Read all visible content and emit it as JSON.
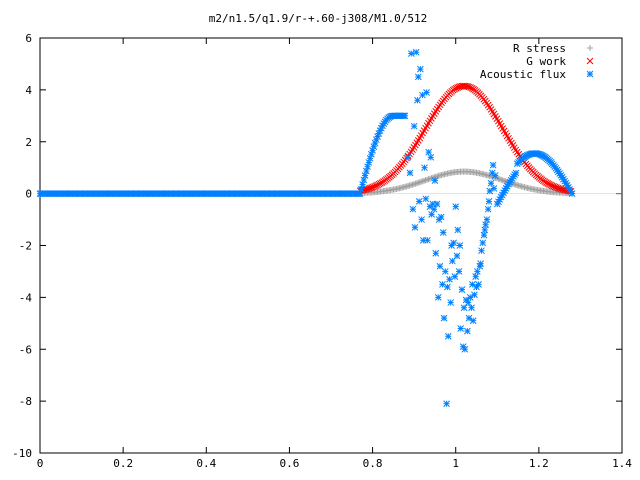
{
  "chart_data": {
    "type": "scatter",
    "title": "m2/n1.5/q1.9/r-+.60-j308/M1.0/512",
    "xlabel": "",
    "ylabel": "",
    "xlim": [
      0,
      1.4
    ],
    "ylim": [
      -10,
      6
    ],
    "x_ticks": [
      "0",
      "0.2",
      "0.4",
      "0.6",
      "0.8",
      "1",
      "1.2",
      "1.4"
    ],
    "y_ticks": [
      "6",
      "4",
      "2",
      "0",
      "-2",
      "-4",
      "-6",
      "-8",
      "-10"
    ],
    "grid": false,
    "legend_position": "top-right",
    "series": [
      {
        "name": "R stress",
        "marker": "plus",
        "color": "#a0a0a0",
        "curve": "bump",
        "x_range": [
          0.77,
          1.28
        ],
        "amplitude": 0.85,
        "center": 1.02,
        "zero_from": 0.0,
        "step": 0.0035
      },
      {
        "name": "G work",
        "marker": "cross",
        "color": "#ff0000",
        "curve": "bump",
        "x_range": [
          0.77,
          1.28
        ],
        "amplitude": 4.15,
        "center": 1.02,
        "zero_from": 0.77,
        "step": 0.0035
      },
      {
        "name": "Acoustic flux",
        "marker": "star",
        "color": "#0080ff",
        "curve": "mixed",
        "zero_range": [
          0,
          0.77
        ],
        "zero_step": 0.003,
        "left_lobe": {
          "x_range": [
            0.77,
            0.88
          ],
          "peak": 3.0,
          "plateau_from": 0.85
        },
        "right_lobe": {
          "x_range": [
            1.1,
            1.28
          ],
          "peak": 1.55,
          "center": 1.21
        },
        "points": [
          [
            0.885,
            1.4
          ],
          [
            0.89,
            0.8
          ],
          [
            0.893,
            5.4
          ],
          [
            0.897,
            -0.6
          ],
          [
            0.9,
            2.6
          ],
          [
            0.902,
            -1.3
          ],
          [
            0.905,
            5.45
          ],
          [
            0.908,
            3.6
          ],
          [
            0.91,
            4.5
          ],
          [
            0.912,
            -0.3
          ],
          [
            0.915,
            4.8
          ],
          [
            0.918,
            -1.0
          ],
          [
            0.92,
            3.8
          ],
          [
            0.922,
            -1.8
          ],
          [
            0.925,
            1.0
          ],
          [
            0.928,
            -0.2
          ],
          [
            0.93,
            3.9
          ],
          [
            0.932,
            -1.8
          ],
          [
            0.935,
            1.6
          ],
          [
            0.938,
            -0.5
          ],
          [
            0.94,
            1.4
          ],
          [
            0.942,
            -0.8
          ],
          [
            0.945,
            -0.4
          ],
          [
            0.948,
            -0.6
          ],
          [
            0.95,
            0.5
          ],
          [
            0.952,
            -2.3
          ],
          [
            0.955,
            -0.4
          ],
          [
            0.958,
            -4.0
          ],
          [
            0.96,
            -1.0
          ],
          [
            0.962,
            -2.8
          ],
          [
            0.965,
            -0.9
          ],
          [
            0.968,
            -3.5
          ],
          [
            0.97,
            -1.5
          ],
          [
            0.972,
            -4.8
          ],
          [
            0.975,
            -3.0
          ],
          [
            0.978,
            -8.1
          ],
          [
            0.98,
            -3.6
          ],
          [
            0.982,
            -5.5
          ],
          [
            0.985,
            -3.3
          ],
          [
            0.988,
            -4.2
          ],
          [
            0.99,
            -2.0
          ],
          [
            0.992,
            -2.6
          ],
          [
            0.995,
            -1.9
          ],
          [
            0.998,
            -3.2
          ],
          [
            1.0,
            -0.5
          ],
          [
            1.003,
            -2.4
          ],
          [
            1.005,
            -1.4
          ],
          [
            1.008,
            -3.0
          ],
          [
            1.01,
            -2.0
          ],
          [
            1.012,
            -5.2
          ],
          [
            1.015,
            -3.7
          ],
          [
            1.018,
            -5.9
          ],
          [
            1.02,
            -4.4
          ],
          [
            1.022,
            -6.0
          ],
          [
            1.025,
            -4.1
          ],
          [
            1.028,
            -5.3
          ],
          [
            1.03,
            -4.2
          ],
          [
            1.032,
            -4.8
          ],
          [
            1.035,
            -4.0
          ],
          [
            1.038,
            -4.4
          ],
          [
            1.04,
            -3.5
          ],
          [
            1.042,
            -4.9
          ],
          [
            1.045,
            -3.9
          ],
          [
            1.048,
            -3.2
          ],
          [
            1.05,
            -3.6
          ],
          [
            1.052,
            -3.0
          ],
          [
            1.055,
            -3.5
          ],
          [
            1.058,
            -2.8
          ],
          [
            1.06,
            -2.7
          ],
          [
            1.062,
            -2.2
          ],
          [
            1.065,
            -1.9
          ],
          [
            1.068,
            -1.6
          ],
          [
            1.07,
            -1.4
          ],
          [
            1.072,
            -1.2
          ],
          [
            1.075,
            -1.0
          ],
          [
            1.078,
            -0.6
          ],
          [
            1.08,
            -0.3
          ],
          [
            1.082,
            0.1
          ],
          [
            1.085,
            0.4
          ],
          [
            1.088,
            0.8
          ],
          [
            1.09,
            1.1
          ],
          [
            1.092,
            0.2
          ],
          [
            1.095,
            0.7
          ]
        ]
      }
    ]
  }
}
